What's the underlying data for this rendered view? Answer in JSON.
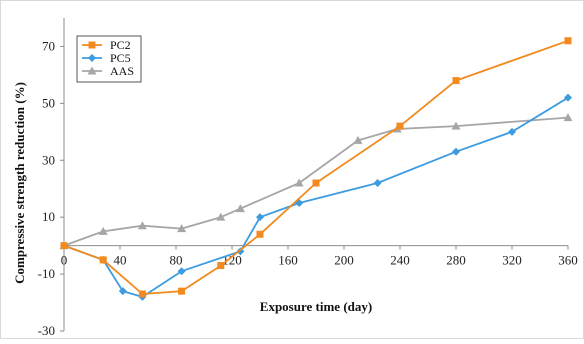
{
  "chart_data": {
    "type": "line",
    "title": "",
    "xlabel": "Exposure time (day)",
    "ylabel": "Compressive strength reduction (%)",
    "xlim": [
      0,
      360
    ],
    "ylim": [
      -30,
      80
    ],
    "xticks": [
      0,
      40,
      80,
      120,
      160,
      200,
      240,
      280,
      320,
      360
    ],
    "yticks": [
      -30,
      -10,
      10,
      30,
      50,
      70
    ],
    "x_tick_labels": [
      "0",
      "40",
      "80",
      "120",
      "160",
      "200",
      "240",
      "280",
      "320",
      "360"
    ],
    "y_tick_labels": [
      "-30",
      "-10",
      "10",
      "30",
      "50",
      "70"
    ],
    "grid": false,
    "legend_position": "top-left",
    "series": [
      {
        "name": "PC2",
        "color": "#F28A1F",
        "marker": "square",
        "x": [
          0,
          28,
          56,
          84,
          112,
          140,
          180,
          240,
          280,
          360
        ],
        "y": [
          0,
          -5,
          -17,
          -16,
          -7,
          4,
          22,
          42,
          58,
          72
        ]
      },
      {
        "name": "PC5",
        "color": "#3D9BE0",
        "marker": "diamond",
        "x": [
          0,
          28,
          42,
          56,
          84,
          126,
          140,
          168,
          224,
          280,
          320,
          360
        ],
        "y": [
          0,
          -5,
          -16,
          -18,
          -9,
          -2,
          10,
          15,
          22,
          33,
          40,
          52
        ]
      },
      {
        "name": "AAS",
        "color": "#A6A6A6",
        "marker": "triangle",
        "x": [
          0,
          28,
          56,
          84,
          112,
          126,
          168,
          210,
          238,
          280,
          360
        ],
        "y": [
          0,
          5,
          7,
          6,
          10,
          13,
          22,
          37,
          41,
          42,
          45
        ]
      }
    ]
  }
}
